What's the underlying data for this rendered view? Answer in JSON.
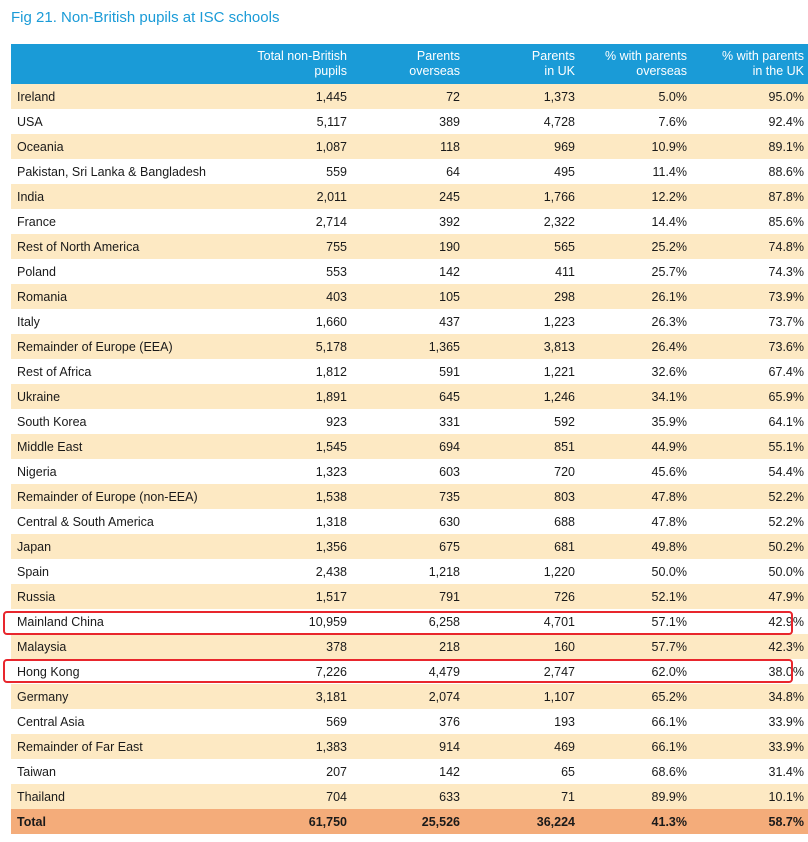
{
  "title": "Fig 21. Non-British pupils at ISC schools",
  "headers": [
    {
      "l1": "",
      "l2": ""
    },
    {
      "l1": "Total non-British",
      "l2": "pupils"
    },
    {
      "l1": "Parents",
      "l2": "overseas"
    },
    {
      "l1": "Parents",
      "l2": "in UK"
    },
    {
      "l1": "% with parents",
      "l2": "overseas"
    },
    {
      "l1": "% with parents",
      "l2": "in the UK"
    }
  ],
  "rows": [
    {
      "name": "Ireland",
      "total": "1,445",
      "overseas": "72",
      "uk": "1,373",
      "pct_overseas": "5.0%",
      "pct_uk": "95.0%"
    },
    {
      "name": "USA",
      "total": "5,117",
      "overseas": "389",
      "uk": "4,728",
      "pct_overseas": "7.6%",
      "pct_uk": "92.4%"
    },
    {
      "name": "Oceania",
      "total": "1,087",
      "overseas": "118",
      "uk": "969",
      "pct_overseas": "10.9%",
      "pct_uk": "89.1%"
    },
    {
      "name": "Pakistan, Sri Lanka & Bangladesh",
      "total": "559",
      "overseas": "64",
      "uk": "495",
      "pct_overseas": "11.4%",
      "pct_uk": "88.6%"
    },
    {
      "name": "India",
      "total": "2,011",
      "overseas": "245",
      "uk": "1,766",
      "pct_overseas": "12.2%",
      "pct_uk": "87.8%"
    },
    {
      "name": "France",
      "total": "2,714",
      "overseas": "392",
      "uk": "2,322",
      "pct_overseas": "14.4%",
      "pct_uk": "85.6%"
    },
    {
      "name": "Rest of North America",
      "total": "755",
      "overseas": "190",
      "uk": "565",
      "pct_overseas": "25.2%",
      "pct_uk": "74.8%"
    },
    {
      "name": "Poland",
      "total": "553",
      "overseas": "142",
      "uk": "411",
      "pct_overseas": "25.7%",
      "pct_uk": "74.3%"
    },
    {
      "name": "Romania",
      "total": "403",
      "overseas": "105",
      "uk": "298",
      "pct_overseas": "26.1%",
      "pct_uk": "73.9%"
    },
    {
      "name": "Italy",
      "total": "1,660",
      "overseas": "437",
      "uk": "1,223",
      "pct_overseas": "26.3%",
      "pct_uk": "73.7%"
    },
    {
      "name": "Remainder of Europe (EEA)",
      "total": "5,178",
      "overseas": "1,365",
      "uk": "3,813",
      "pct_overseas": "26.4%",
      "pct_uk": "73.6%"
    },
    {
      "name": "Rest of Africa",
      "total": "1,812",
      "overseas": "591",
      "uk": "1,221",
      "pct_overseas": "32.6%",
      "pct_uk": "67.4%"
    },
    {
      "name": "Ukraine",
      "total": "1,891",
      "overseas": "645",
      "uk": "1,246",
      "pct_overseas": "34.1%",
      "pct_uk": "65.9%"
    },
    {
      "name": "South Korea",
      "total": "923",
      "overseas": "331",
      "uk": "592",
      "pct_overseas": "35.9%",
      "pct_uk": "64.1%"
    },
    {
      "name": "Middle East",
      "total": "1,545",
      "overseas": "694",
      "uk": "851",
      "pct_overseas": "44.9%",
      "pct_uk": "55.1%"
    },
    {
      "name": "Nigeria",
      "total": "1,323",
      "overseas": "603",
      "uk": "720",
      "pct_overseas": "45.6%",
      "pct_uk": "54.4%"
    },
    {
      "name": "Remainder of Europe (non-EEA)",
      "total": "1,538",
      "overseas": "735",
      "uk": "803",
      "pct_overseas": "47.8%",
      "pct_uk": "52.2%"
    },
    {
      "name": "Central & South America",
      "total": "1,318",
      "overseas": "630",
      "uk": "688",
      "pct_overseas": "47.8%",
      "pct_uk": "52.2%"
    },
    {
      "name": "Japan",
      "total": "1,356",
      "overseas": "675",
      "uk": "681",
      "pct_overseas": "49.8%",
      "pct_uk": "50.2%"
    },
    {
      "name": "Spain",
      "total": "2,438",
      "overseas": "1,218",
      "uk": "1,220",
      "pct_overseas": "50.0%",
      "pct_uk": "50.0%"
    },
    {
      "name": "Russia",
      "total": "1,517",
      "overseas": "791",
      "uk": "726",
      "pct_overseas": "52.1%",
      "pct_uk": "47.9%"
    },
    {
      "name": "Mainland China",
      "total": "10,959",
      "overseas": "6,258",
      "uk": "4,701",
      "pct_overseas": "57.1%",
      "pct_uk": "42.9%"
    },
    {
      "name": "Malaysia",
      "total": "378",
      "overseas": "218",
      "uk": "160",
      "pct_overseas": "57.7%",
      "pct_uk": "42.3%"
    },
    {
      "name": "Hong Kong",
      "total": "7,226",
      "overseas": "4,479",
      "uk": "2,747",
      "pct_overseas": "62.0%",
      "pct_uk": "38.0%"
    },
    {
      "name": "Germany",
      "total": "3,181",
      "overseas": "2,074",
      "uk": "1,107",
      "pct_overseas": "65.2%",
      "pct_uk": "34.8%"
    },
    {
      "name": "Central Asia",
      "total": "569",
      "overseas": "376",
      "uk": "193",
      "pct_overseas": "66.1%",
      "pct_uk": "33.9%"
    },
    {
      "name": "Remainder of Far East",
      "total": "1,383",
      "overseas": "914",
      "uk": "469",
      "pct_overseas": "66.1%",
      "pct_uk": "33.9%"
    },
    {
      "name": "Taiwan",
      "total": "207",
      "overseas": "142",
      "uk": "65",
      "pct_overseas": "68.6%",
      "pct_uk": "31.4%"
    },
    {
      "name": "Thailand",
      "total": "704",
      "overseas": "633",
      "uk": "71",
      "pct_overseas": "89.9%",
      "pct_uk": "10.1%"
    }
  ],
  "total": {
    "name": "Total",
    "total": "61,750",
    "overseas": "25,526",
    "uk": "36,224",
    "pct_overseas": "41.3%",
    "pct_uk": "58.7%"
  },
  "colors": {
    "header": "#1a9bd7",
    "title": "#1a9bd7",
    "row_alt": "#fde9c3",
    "total_row": "#f4ac7a",
    "highlight": "#e8262d"
  }
}
